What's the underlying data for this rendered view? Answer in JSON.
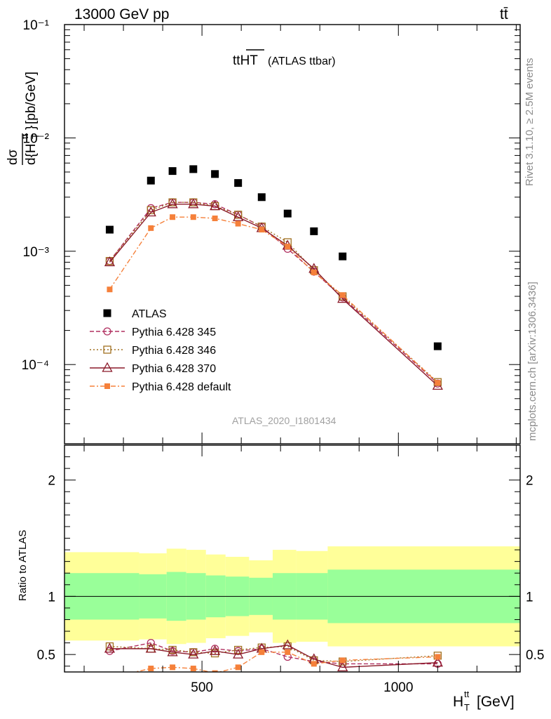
{
  "header": {
    "collision": "13000 GeV pp",
    "process": "tt̄",
    "rivet_label": "Rivet 3.1.10, ≥ 2.5M events",
    "mcplots_label": "mcplots.cern.ch [arXiv:1306.3436]",
    "analysis_id": "ATLAS_2020_I1801434"
  },
  "chart_data": {
    "type": "scatter",
    "title_main": "tt",
    "title_over": "HT",
    "title_suffix": "(ATLAS ttbar)",
    "ylabel_main": "[pb/GeV]",
    "ratio_ylabel": "Ratio to ATLAS",
    "xlabel_main": "H",
    "xlabel_sup": "tt",
    "xlabel_sub": "T",
    "xlabel_unit": "[GeV]",
    "xlim": [
      150,
      1310
    ],
    "ylim": [
      2e-05,
      0.1
    ],
    "yscale": "log",
    "ratio_ylim": [
      0.35,
      2.3
    ],
    "x_ticks": [
      "500",
      "1000"
    ],
    "y_ticks": [
      "10⁻¹",
      "10⁻²",
      "10⁻³",
      "10⁻⁴"
    ],
    "ratio_ticks": [
      "0.5",
      "1",
      "2"
    ],
    "legend_position": "bottom-left",
    "series": [
      {
        "name": "ATLAS",
        "color": "#000000",
        "marker": "square-filled",
        "x": [
          265,
          370,
          425,
          478,
          533,
          592,
          652,
          718,
          785,
          858,
          1100
        ],
        "y": [
          0.00155,
          0.0042,
          0.0051,
          0.0053,
          0.0048,
          0.004,
          0.003,
          0.00215,
          0.0015,
          0.0009,
          0.000145
        ],
        "band_edges": [
          150,
          340,
          410,
          460,
          510,
          560,
          620,
          680,
          740,
          820,
          1310
        ],
        "band_inner_hi": [
          1.2,
          1.19,
          1.21,
          1.2,
          1.18,
          1.17,
          1.16,
          1.2,
          1.2,
          1.23
        ],
        "band_inner_lo": [
          0.8,
          0.81,
          0.79,
          0.8,
          0.82,
          0.83,
          0.84,
          0.8,
          0.8,
          0.77
        ],
        "band_outer_hi": [
          1.38,
          1.37,
          1.41,
          1.4,
          1.36,
          1.34,
          1.31,
          1.4,
          1.39,
          1.43
        ],
        "band_outer_lo": [
          0.62,
          0.63,
          0.59,
          0.6,
          0.64,
          0.66,
          0.69,
          0.6,
          0.61,
          0.57
        ]
      },
      {
        "name": "Pythia 6.428 345",
        "color": "#b03060",
        "marker": "circle-open",
        "dash": "6,3",
        "x": [
          265,
          370,
          425,
          478,
          533,
          592,
          652,
          718,
          785,
          858,
          1100
        ],
        "y": [
          0.00082,
          0.0024,
          0.0027,
          0.0027,
          0.0026,
          0.0021,
          0.00165,
          0.00105,
          0.00066,
          0.00039,
          6.8e-05
        ],
        "ratio": [
          0.53,
          0.6,
          0.53,
          0.52,
          0.55,
          0.53,
          0.55,
          0.48,
          0.44,
          0.42,
          0.42
        ]
      },
      {
        "name": "Pythia 6.428 346",
        "color": "#a07020",
        "marker": "square-open",
        "dash": "2,3",
        "x": [
          265,
          370,
          425,
          478,
          533,
          592,
          652,
          718,
          785,
          858,
          1100
        ],
        "y": [
          0.00082,
          0.0023,
          0.0027,
          0.0027,
          0.0025,
          0.0021,
          0.00165,
          0.0012,
          0.00068,
          0.0004,
          7e-05
        ],
        "ratio": [
          0.57,
          0.55,
          0.54,
          0.52,
          0.51,
          0.54,
          0.56,
          0.57,
          0.45,
          0.44,
          0.49
        ]
      },
      {
        "name": "Pythia 6.428 370",
        "color": "#8b1a2a",
        "marker": "triangle-open",
        "dash": "",
        "x": [
          265,
          370,
          425,
          478,
          533,
          592,
          652,
          718,
          785,
          858,
          1100
        ],
        "y": [
          0.0008,
          0.0022,
          0.0026,
          0.0026,
          0.0025,
          0.002,
          0.0016,
          0.00112,
          0.0007,
          0.00038,
          6.5e-05
        ],
        "ratio": [
          0.55,
          0.55,
          0.52,
          0.5,
          0.53,
          0.5,
          0.55,
          0.58,
          0.46,
          0.39,
          0.43
        ]
      },
      {
        "name": "Pythia 6.428 default",
        "color": "#f5803a",
        "marker": "square-filled-small",
        "dash": "7,3,2,3",
        "x": [
          265,
          370,
          425,
          478,
          533,
          592,
          652,
          718,
          785,
          858,
          1100
        ],
        "y": [
          0.00046,
          0.0016,
          0.002,
          0.002,
          0.00195,
          0.00175,
          0.00155,
          0.0011,
          0.00065,
          0.00041,
          6.9e-05
        ],
        "ratio": [
          0.3,
          0.38,
          0.39,
          0.38,
          0.34,
          0.39,
          0.52,
          0.52,
          0.42,
          0.45,
          0.48
        ]
      }
    ]
  }
}
